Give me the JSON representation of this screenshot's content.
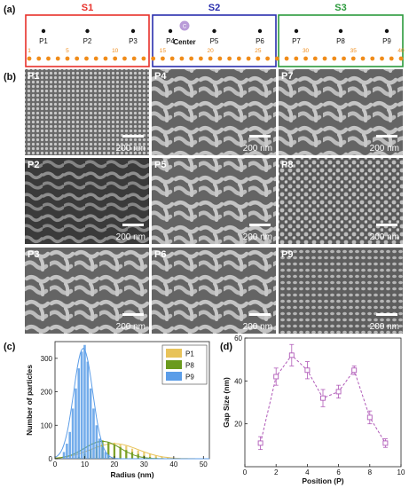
{
  "figure": {
    "panel_a": {
      "label": "(a)",
      "sections": [
        {
          "name": "S1",
          "color": "#e8302a",
          "points": [
            "P1",
            "P2",
            "P3"
          ]
        },
        {
          "name": "S2",
          "color": "#2a2fae",
          "points": [
            "P4",
            "P5",
            "P6"
          ]
        },
        {
          "name": "S3",
          "color": "#2b9a3c",
          "points": [
            "P7",
            "P8",
            "P9"
          ]
        }
      ],
      "center_label": "Center",
      "center_icon": "C",
      "dot_color": "#f08c1a",
      "index_labels": [
        "1",
        "5",
        "10",
        "15",
        "20",
        "25",
        "30",
        "35",
        "40"
      ]
    },
    "panel_b": {
      "label": "(b)",
      "scale_bar": "200 nm",
      "images": [
        "P1",
        "P4",
        "P7",
        "P2",
        "P5",
        "P8",
        "P3",
        "P6",
        "P9"
      ]
    },
    "panel_c": {
      "label": "(c)"
    },
    "panel_d": {
      "label": "(d)"
    }
  },
  "chart_data": [
    {
      "type": "bar",
      "panel": "(c)",
      "xlabel": "Radius (nm)",
      "ylabel": "Number of particles",
      "xlim": [
        0,
        52
      ],
      "ylim": [
        0,
        350
      ],
      "xticks": [
        0,
        10,
        20,
        30,
        40,
        50
      ],
      "yticks": [
        0,
        100,
        200,
        300
      ],
      "legend_position": "top-right",
      "series": [
        {
          "name": "P1",
          "color": "#e8c35a",
          "fit_peak_x": 20,
          "fit_peak_y": 45,
          "fit_sigma": 8,
          "bars": [
            [
              10,
              5
            ],
            [
              12,
              12
            ],
            [
              14,
              22
            ],
            [
              16,
              35
            ],
            [
              18,
              45
            ],
            [
              20,
              48
            ],
            [
              22,
              42
            ],
            [
              24,
              38
            ],
            [
              26,
              30
            ],
            [
              28,
              25
            ],
            [
              30,
              20
            ],
            [
              32,
              15
            ],
            [
              34,
              10
            ],
            [
              36,
              6
            ],
            [
              38,
              4
            ],
            [
              40,
              3
            ],
            [
              42,
              2
            ]
          ]
        },
        {
          "name": "P8",
          "color": "#6a9a1e",
          "fit_peak_x": 16,
          "fit_peak_y": 52,
          "fit_sigma": 6,
          "bars": [
            [
              8,
              6
            ],
            [
              10,
              15
            ],
            [
              12,
              28
            ],
            [
              14,
              42
            ],
            [
              16,
              55
            ],
            [
              18,
              50
            ],
            [
              20,
              42
            ],
            [
              22,
              35
            ],
            [
              24,
              26
            ],
            [
              26,
              20
            ],
            [
              28,
              14
            ],
            [
              30,
              9
            ],
            [
              32,
              5
            ],
            [
              34,
              3
            ]
          ]
        },
        {
          "name": "P9",
          "color": "#5b9de8",
          "fit_peak_x": 9.5,
          "fit_peak_y": 330,
          "fit_sigma": 3.2,
          "bars": [
            [
              3,
              20
            ],
            [
              4,
              45
            ],
            [
              5,
              80
            ],
            [
              6,
              150
            ],
            [
              7,
              210
            ],
            [
              8,
              270
            ],
            [
              9,
              320
            ],
            [
              10,
              340
            ],
            [
              11,
              290
            ],
            [
              12,
              210
            ],
            [
              13,
              150
            ],
            [
              14,
              100
            ],
            [
              15,
              60
            ],
            [
              16,
              35
            ],
            [
              17,
              20
            ],
            [
              18,
              12
            ]
          ]
        }
      ]
    },
    {
      "type": "line",
      "panel": "(d)",
      "xlabel": "Position (P)",
      "ylabel": "Gap Size (nm)",
      "xlim": [
        0,
        10
      ],
      "ylim": [
        0,
        60
      ],
      "xticks": [
        0,
        2,
        4,
        6,
        8,
        10
      ],
      "yticks": [
        20,
        40,
        60
      ],
      "color": "#b05ab8",
      "points": [
        {
          "x": 1,
          "y": 11,
          "err": 3
        },
        {
          "x": 2,
          "y": 42,
          "err": 4
        },
        {
          "x": 3,
          "y": 52,
          "err": 5
        },
        {
          "x": 4,
          "y": 45,
          "err": 4
        },
        {
          "x": 5,
          "y": 32,
          "err": 4
        },
        {
          "x": 6,
          "y": 35,
          "err": 3
        },
        {
          "x": 7,
          "y": 45,
          "err": 2
        },
        {
          "x": 8,
          "y": 23,
          "err": 3
        },
        {
          "x": 9,
          "y": 11,
          "err": 2
        }
      ]
    }
  ]
}
